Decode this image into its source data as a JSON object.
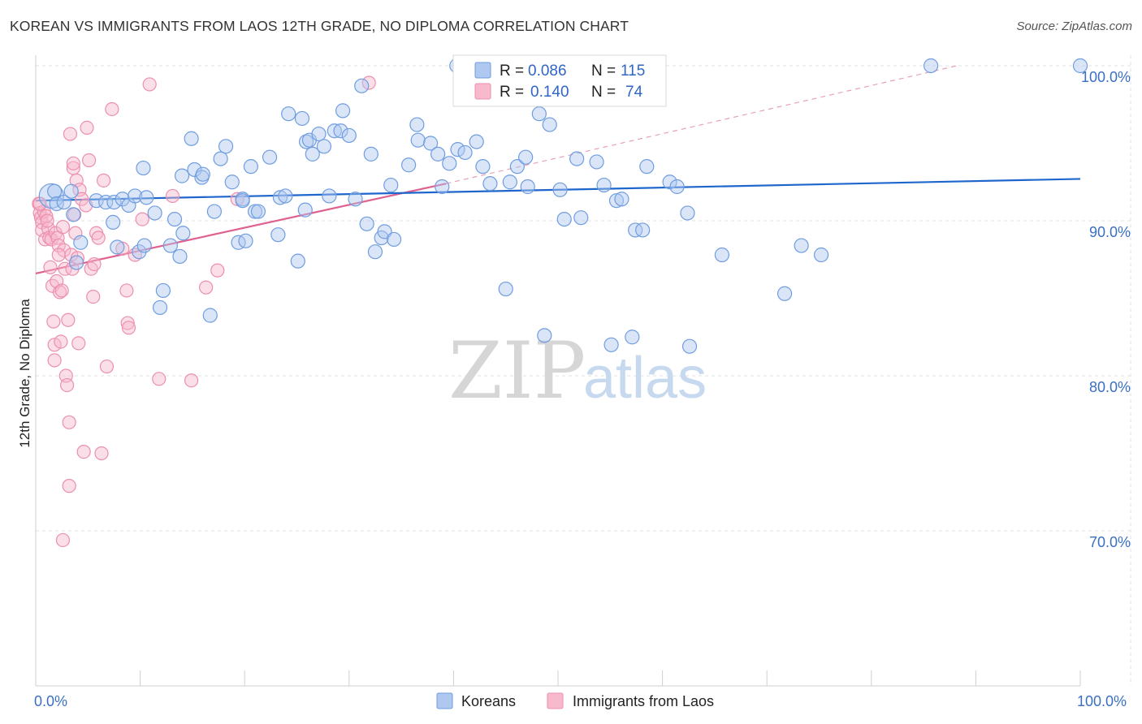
{
  "title": "KOREAN VS IMMIGRANTS FROM LAOS 12TH GRADE, NO DIPLOMA CORRELATION CHART",
  "source": "Source: ZipAtlas.com",
  "watermark": {
    "zip": "ZIP",
    "atlas": "atlas"
  },
  "colors": {
    "korean_fill": "#aec8ef",
    "korean_stroke": "#6f9de0",
    "korean_line": "#1f66cc",
    "laos_fill": "#f7b9cb",
    "laos_stroke": "#ec8fae",
    "laos_line": "#e0608f",
    "tick_blue": "#3a6fc4",
    "grid": "#e2e2e2"
  },
  "stats": {
    "korean": {
      "r_label": "R =",
      "r_value": "0.086",
      "n_label": "N =",
      "n_value": "115"
    },
    "laos": {
      "r_label": "R =",
      "r_value": "0.140",
      "n_label": "N =",
      "n_value": "74"
    }
  },
  "chart_data": {
    "type": "scatter",
    "title": "KOREAN VS IMMIGRANTS FROM LAOS 12TH GRADE, NO DIPLOMA CORRELATION CHART",
    "xlabel": "",
    "ylabel": "12th Grade, No Diploma",
    "xlim": [
      0,
      100
    ],
    "ylim": [
      59,
      102
    ],
    "x_tick_labels": [
      "0.0%",
      "100.0%"
    ],
    "y_ticks": [
      70,
      80,
      90,
      100
    ],
    "y_tick_labels": [
      "70.0%",
      "80.0%",
      "90.0%",
      "100.0%"
    ],
    "grid": true,
    "legend_position": "bottom",
    "series": [
      {
        "name": "Koreans",
        "r": 0.086,
        "n": 115,
        "trend": {
          "x": [
            0,
            100
          ],
          "y": [
            91.3,
            92.7
          ]
        },
        "points": [
          [
            1.5,
            91.6
          ],
          [
            1.8,
            91.9
          ],
          [
            2.0,
            91.1
          ],
          [
            2.7,
            91.2
          ],
          [
            3.6,
            90.4
          ],
          [
            3.4,
            91.9
          ],
          [
            4.3,
            88.6
          ],
          [
            3.9,
            87.3
          ],
          [
            5.8,
            91.3
          ],
          [
            6.7,
            91.2
          ],
          [
            7.4,
            89.9
          ],
          [
            7.5,
            91.2
          ],
          [
            7.8,
            88.3
          ],
          [
            8.3,
            91.4
          ],
          [
            8.9,
            91.0
          ],
          [
            9.5,
            91.6
          ],
          [
            9.9,
            88.0
          ],
          [
            10.3,
            93.4
          ],
          [
            10.4,
            88.4
          ],
          [
            10.6,
            91.5
          ],
          [
            11.4,
            90.5
          ],
          [
            11.9,
            84.4
          ],
          [
            12.2,
            85.5
          ],
          [
            12.9,
            88.4
          ],
          [
            13.3,
            90.1
          ],
          [
            13.8,
            87.7
          ],
          [
            14.1,
            89.2
          ],
          [
            14.9,
            95.3
          ],
          [
            15.2,
            93.3
          ],
          [
            15.9,
            92.8
          ],
          [
            16.0,
            93.0
          ],
          [
            16.7,
            83.9
          ],
          [
            17.1,
            90.6
          ],
          [
            17.7,
            94.0
          ],
          [
            18.2,
            94.8
          ],
          [
            18.8,
            92.5
          ],
          [
            19.4,
            88.6
          ],
          [
            19.8,
            91.4
          ],
          [
            20.1,
            88.7
          ],
          [
            20.6,
            93.5
          ],
          [
            21.0,
            90.6
          ],
          [
            21.3,
            90.6
          ],
          [
            22.4,
            94.1
          ],
          [
            23.2,
            89.1
          ],
          [
            23.4,
            91.5
          ],
          [
            23.9,
            91.6
          ],
          [
            24.2,
            96.9
          ],
          [
            25.1,
            87.4
          ],
          [
            25.5,
            96.6
          ],
          [
            25.9,
            95.1
          ],
          [
            26.2,
            95.2
          ],
          [
            26.5,
            94.3
          ],
          [
            27.1,
            95.6
          ],
          [
            27.6,
            94.8
          ],
          [
            28.1,
            91.6
          ],
          [
            28.6,
            95.8
          ],
          [
            29.2,
            95.8
          ],
          [
            29.4,
            97.1
          ],
          [
            30.0,
            95.5
          ],
          [
            30.6,
            91.4
          ],
          [
            31.2,
            98.7
          ],
          [
            31.7,
            89.8
          ],
          [
            32.1,
            94.3
          ],
          [
            32.5,
            88.0
          ],
          [
            33.1,
            88.9
          ],
          [
            33.4,
            89.3
          ],
          [
            34.3,
            88.8
          ],
          [
            34.0,
            92.3
          ],
          [
            35.7,
            93.6
          ],
          [
            36.5,
            96.2
          ],
          [
            36.6,
            95.2
          ],
          [
            37.8,
            95.0
          ],
          [
            38.5,
            94.3
          ],
          [
            38.9,
            92.2
          ],
          [
            39.6,
            93.7
          ],
          [
            40.4,
            94.6
          ],
          [
            41.1,
            94.4
          ],
          [
            42.2,
            95.1
          ],
          [
            42.8,
            93.5
          ],
          [
            43.5,
            92.4
          ],
          [
            45.0,
            85.6
          ],
          [
            45.4,
            92.5
          ],
          [
            46.1,
            93.5
          ],
          [
            46.9,
            94.1
          ],
          [
            47.1,
            92.2
          ],
          [
            48.2,
            96.9
          ],
          [
            48.7,
            82.6
          ],
          [
            49.2,
            96.2
          ],
          [
            50.2,
            92.0
          ],
          [
            50.6,
            90.1
          ],
          [
            51.8,
            94.0
          ],
          [
            52.2,
            90.2
          ],
          [
            53.7,
            93.8
          ],
          [
            54.4,
            92.3
          ],
          [
            55.1,
            82.0
          ],
          [
            55.6,
            91.3
          ],
          [
            56.1,
            91.4
          ],
          [
            57.1,
            82.5
          ],
          [
            57.4,
            89.4
          ],
          [
            58.1,
            89.4
          ],
          [
            58.5,
            93.5
          ],
          [
            60.7,
            92.5
          ],
          [
            61.4,
            92.2
          ],
          [
            62.4,
            90.5
          ],
          [
            62.6,
            81.9
          ],
          [
            65.7,
            87.8
          ],
          [
            71.7,
            85.3
          ],
          [
            73.3,
            88.4
          ],
          [
            75.2,
            87.8
          ],
          [
            85.7,
            100.0
          ],
          [
            100.0,
            100.0
          ],
          [
            40.3,
            100.0
          ],
          [
            19.8,
            91.3
          ],
          [
            25.8,
            90.7
          ],
          [
            14.0,
            92.9
          ]
        ]
      },
      {
        "name": "Immigrants from Laos",
        "r": 0.14,
        "n": 74,
        "trend": {
          "x": [
            0,
            39.3
          ],
          "y": [
            86.6,
            92.4
          ]
        },
        "trend_dashed": {
          "x": [
            39.3,
            88.2
          ],
          "y": [
            92.4,
            100.0
          ]
        },
        "points": [
          [
            0.3,
            91.1
          ],
          [
            0.4,
            90.5
          ],
          [
            0.5,
            90.2
          ],
          [
            0.6,
            89.9
          ],
          [
            0.6,
            89.4
          ],
          [
            0.8,
            90.6
          ],
          [
            0.9,
            88.8
          ],
          [
            1.0,
            90.3
          ],
          [
            1.2,
            89.5
          ],
          [
            1.3,
            88.9
          ],
          [
            1.4,
            87.0
          ],
          [
            1.5,
            88.8
          ],
          [
            1.6,
            85.8
          ],
          [
            1.7,
            83.5
          ],
          [
            1.8,
            82.0
          ],
          [
            1.9,
            89.2
          ],
          [
            2.0,
            86.1
          ],
          [
            2.1,
            88.9
          ],
          [
            2.2,
            88.4
          ],
          [
            2.3,
            85.4
          ],
          [
            2.4,
            82.2
          ],
          [
            2.5,
            85.5
          ],
          [
            2.6,
            89.6
          ],
          [
            2.7,
            88.1
          ],
          [
            2.8,
            86.9
          ],
          [
            2.9,
            80.0
          ],
          [
            3.0,
            79.4
          ],
          [
            3.1,
            83.6
          ],
          [
            3.2,
            77.0
          ],
          [
            3.3,
            95.6
          ],
          [
            3.4,
            87.8
          ],
          [
            3.5,
            86.9
          ],
          [
            3.6,
            93.4
          ],
          [
            3.7,
            90.4
          ],
          [
            3.8,
            89.2
          ],
          [
            3.9,
            92.6
          ],
          [
            4.0,
            87.6
          ],
          [
            4.1,
            82.1
          ],
          [
            4.2,
            92.0
          ],
          [
            4.4,
            91.4
          ],
          [
            4.6,
            75.1
          ],
          [
            4.8,
            91.0
          ],
          [
            4.9,
            96.0
          ],
          [
            5.1,
            93.9
          ],
          [
            5.3,
            86.9
          ],
          [
            5.5,
            85.1
          ],
          [
            5.8,
            89.2
          ],
          [
            6.0,
            88.9
          ],
          [
            6.3,
            75.0
          ],
          [
            6.5,
            92.6
          ],
          [
            6.8,
            80.6
          ],
          [
            7.3,
            97.2
          ],
          [
            8.3,
            88.2
          ],
          [
            8.7,
            85.5
          ],
          [
            8.8,
            83.4
          ],
          [
            8.9,
            83.1
          ],
          [
            9.5,
            87.8
          ],
          [
            10.2,
            90.1
          ],
          [
            10.9,
            98.8
          ],
          [
            11.8,
            79.8
          ],
          [
            13.1,
            91.6
          ],
          [
            14.9,
            79.7
          ],
          [
            16.3,
            85.7
          ],
          [
            17.4,
            86.8
          ],
          [
            19.3,
            91.4
          ],
          [
            31.9,
            98.9
          ],
          [
            3.2,
            72.9
          ],
          [
            2.6,
            69.4
          ],
          [
            0.4,
            91.1
          ],
          [
            1.8,
            81.0
          ],
          [
            2.2,
            87.8
          ],
          [
            1.1,
            90.0
          ],
          [
            5.6,
            87.2
          ],
          [
            3.6,
            93.7
          ]
        ]
      }
    ]
  },
  "legend": {
    "koreans": "Koreans",
    "laos": "Immigrants from Laos"
  }
}
